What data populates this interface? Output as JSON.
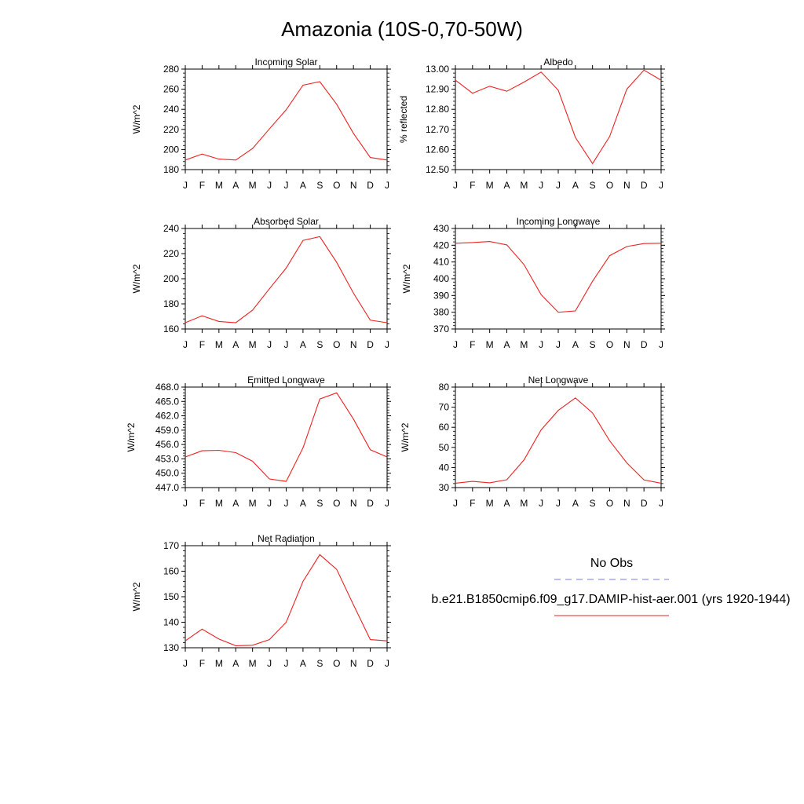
{
  "figure": {
    "title": "Amazonia (10S-0,70-50W)"
  },
  "legend": {
    "entries": [
      {
        "label": "No Obs",
        "color": "#7777ee",
        "style": "dashed"
      },
      {
        "label": "b.e21.B1850cmip6.f09_g17.DAMIP-hist-aer.001 (yrs 1920-1944)",
        "color": "#ee2222",
        "style": "solid"
      }
    ]
  },
  "chart_data": [
    {
      "type": "line",
      "title": "Incoming Solar",
      "ylabel": "W/m^2",
      "ylim": [
        180,
        280
      ],
      "yticks": [
        180,
        200,
        220,
        240,
        260,
        280
      ],
      "ytick_labels": [
        "180",
        "200",
        "220",
        "240",
        "260",
        "280"
      ],
      "x": [
        "J",
        "F",
        "M",
        "A",
        "M",
        "J",
        "J",
        "A",
        "S",
        "O",
        "N",
        "D",
        "J"
      ],
      "series": [
        {
          "color": "#ee2222",
          "values": [
            189.5,
            195.5,
            190.5,
            189.5,
            201,
            220.5,
            239.5,
            264,
            267.5,
            245,
            216,
            192,
            189.5
          ]
        }
      ]
    },
    {
      "type": "line",
      "title": "Albedo",
      "ylabel": "% reflected",
      "ylim": [
        12.5,
        13.0
      ],
      "yticks": [
        12.5,
        12.6,
        12.7,
        12.8,
        12.9,
        13.0
      ],
      "ytick_labels": [
        "12.50",
        "12.60",
        "12.70",
        "12.80",
        "12.90",
        "13.00"
      ],
      "x": [
        "J",
        "F",
        "M",
        "A",
        "M",
        "J",
        "J",
        "A",
        "S",
        "O",
        "N",
        "D",
        "J"
      ],
      "series": [
        {
          "color": "#ee2222",
          "values": [
            12.945,
            12.88,
            12.915,
            12.89,
            12.935,
            12.985,
            12.895,
            12.66,
            12.53,
            12.665,
            12.9,
            12.995,
            12.945
          ]
        }
      ]
    },
    {
      "type": "line",
      "title": "Absorbed Solar",
      "ylabel": "W/m^2",
      "ylim": [
        160,
        240
      ],
      "yticks": [
        160,
        180,
        200,
        220,
        240
      ],
      "ytick_labels": [
        "160",
        "180",
        "200",
        "220",
        "240"
      ],
      "x": [
        "J",
        "F",
        "M",
        "A",
        "M",
        "J",
        "J",
        "A",
        "S",
        "O",
        "N",
        "D",
        "J"
      ],
      "series": [
        {
          "color": "#ee2222",
          "values": [
            165,
            170.5,
            166,
            165,
            175,
            192,
            208.5,
            230.5,
            233.5,
            213,
            188.5,
            167,
            165
          ]
        }
      ]
    },
    {
      "type": "line",
      "title": "Incoming Longwave",
      "ylabel": "W/m^2",
      "ylim": [
        370,
        430
      ],
      "yticks": [
        370,
        380,
        390,
        400,
        410,
        420,
        430
      ],
      "ytick_labels": [
        "370",
        "380",
        "390",
        "400",
        "410",
        "420",
        "430"
      ],
      "x": [
        "J",
        "F",
        "M",
        "A",
        "M",
        "J",
        "J",
        "A",
        "S",
        "O",
        "N",
        "D",
        "J"
      ],
      "series": [
        {
          "color": "#ee2222",
          "values": [
            421.2,
            421.6,
            422.2,
            420.2,
            408.5,
            390.5,
            380,
            380.8,
            398.5,
            413.8,
            419.2,
            421,
            421.2
          ]
        }
      ]
    },
    {
      "type": "line",
      "title": "Emitted Longwave",
      "ylabel": "W/m^2",
      "ylim": [
        447,
        468
      ],
      "yticks": [
        447,
        450,
        453,
        456,
        459,
        462,
        465,
        468
      ],
      "ytick_labels": [
        "447.0",
        "450.0",
        "453.0",
        "456.0",
        "459.0",
        "462.0",
        "465.0",
        "468.0"
      ],
      "x": [
        "J",
        "F",
        "M",
        "A",
        "M",
        "J",
        "J",
        "A",
        "S",
        "O",
        "N",
        "D",
        "J"
      ],
      "series": [
        {
          "color": "#ee2222",
          "values": [
            453.4,
            454.7,
            454.8,
            454.3,
            452.5,
            448.8,
            448.3,
            455.3,
            465.5,
            466.8,
            461.3,
            454.9,
            453.4
          ]
        }
      ]
    },
    {
      "type": "line",
      "title": "Net Longwave",
      "ylabel": "W/m^2",
      "ylim": [
        30,
        80
      ],
      "yticks": [
        30,
        40,
        50,
        60,
        70,
        80
      ],
      "ytick_labels": [
        "30",
        "40",
        "50",
        "60",
        "70",
        "80"
      ],
      "x": [
        "J",
        "F",
        "M",
        "A",
        "M",
        "J",
        "J",
        "A",
        "S",
        "O",
        "N",
        "D",
        "J"
      ],
      "series": [
        {
          "color": "#ee2222",
          "values": [
            32.2,
            33.1,
            32.4,
            33.9,
            43.7,
            58.7,
            68.4,
            74.6,
            67.1,
            53.3,
            42.3,
            33.8,
            32.2
          ]
        }
      ]
    },
    {
      "type": "line",
      "title": "Net Radiation",
      "ylabel": "W/m^2",
      "ylim": [
        130,
        170
      ],
      "yticks": [
        130,
        140,
        150,
        160,
        170
      ],
      "ytick_labels": [
        "130",
        "140",
        "150",
        "160",
        "170"
      ],
      "x": [
        "J",
        "F",
        "M",
        "A",
        "M",
        "J",
        "J",
        "A",
        "S",
        "O",
        "N",
        "D",
        "J"
      ],
      "series": [
        {
          "color": "#ee2222",
          "values": [
            132.7,
            137.3,
            133.4,
            130.8,
            131,
            133.2,
            140,
            156,
            166.5,
            160.7,
            146.8,
            133.2,
            132.7
          ]
        }
      ]
    }
  ]
}
